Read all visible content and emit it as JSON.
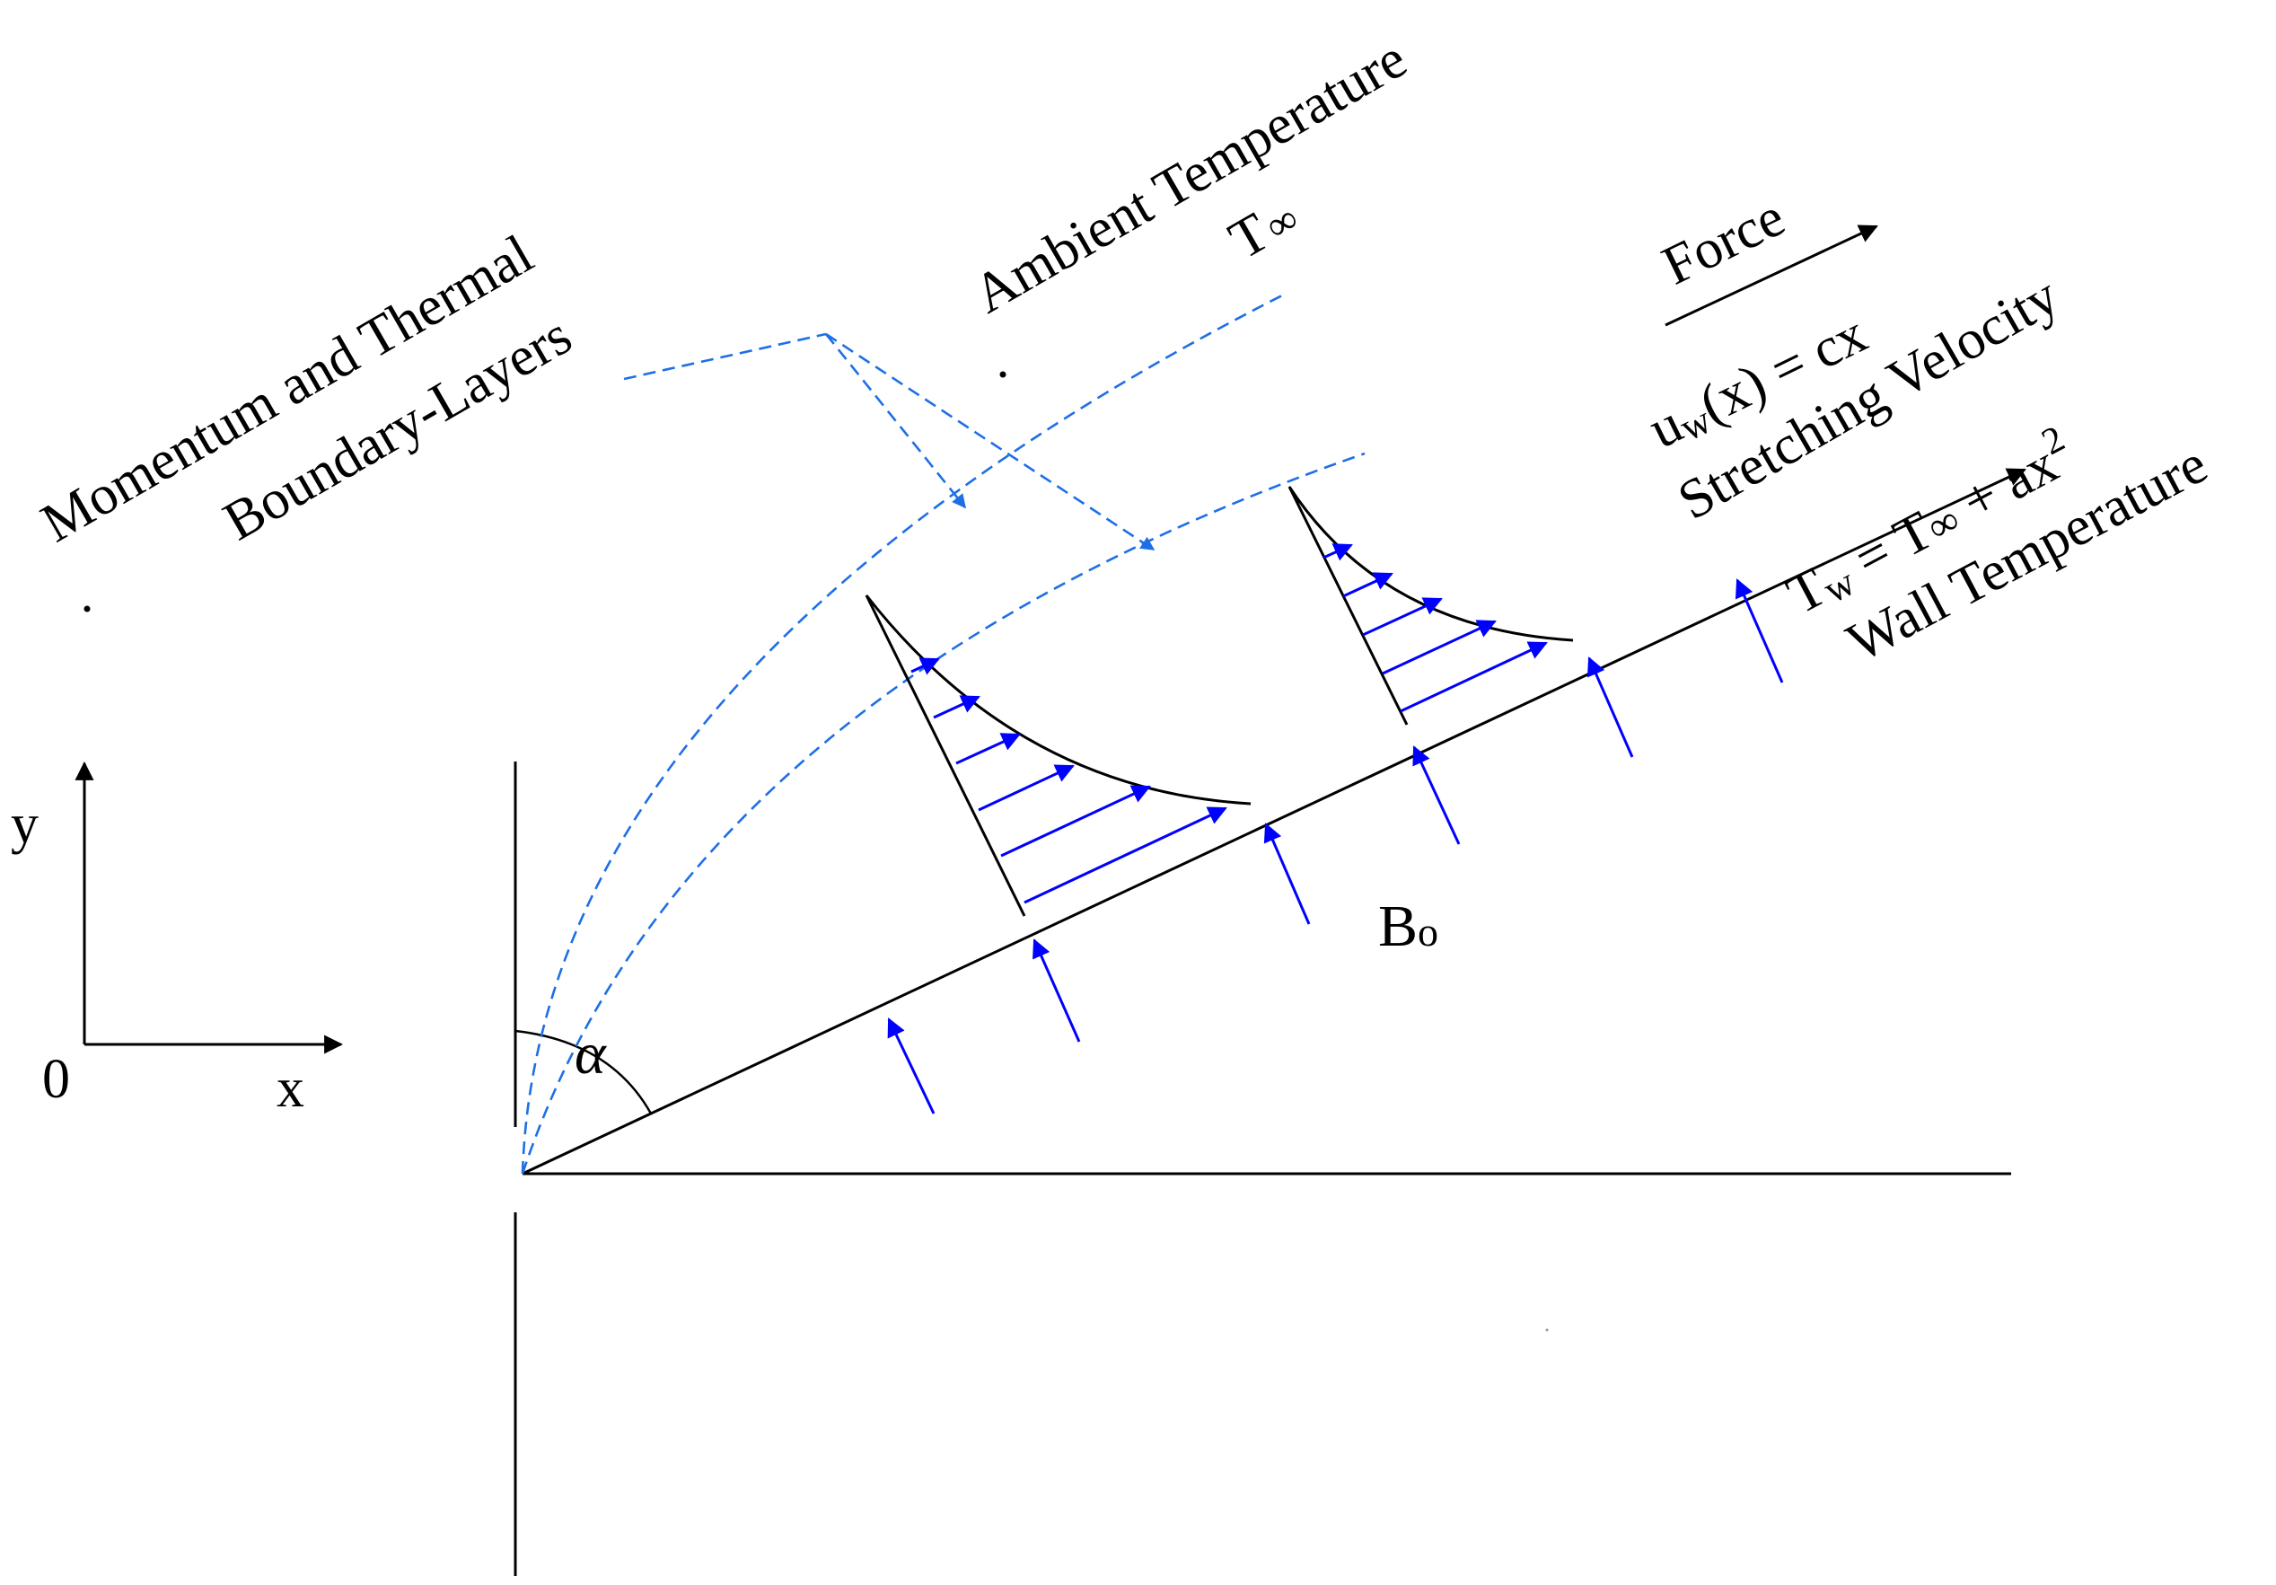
{
  "labels": {
    "boundary_line1": "Momentum and Thermal",
    "boundary_line2": "Boundary-Layers",
    "ambient_line1": "Ambient Temperature",
    "ambient_symbol": "T",
    "infinity": "∞",
    "force": "Force",
    "velocity_u": "u",
    "velocity_sub": "w",
    "velocity_rest": "(x) = cx",
    "stretching": "Stretching Velocity",
    "wall_T": "T",
    "wall_sub": "w",
    "wall_eq_mid": " = T",
    "wall_eq_end": " + ax",
    "wall_exp": "2",
    "wall_temperature": "Wall Temperature",
    "magnetic_B": "B",
    "magnetic_sub": "o",
    "axis_y": "y",
    "axis_x": "x",
    "origin": "0",
    "angle": "α"
  },
  "colors": {
    "velocity_arrows": "#0000ff",
    "boundary_layer_edges": "#1e6fe6",
    "lines": "#000000"
  }
}
